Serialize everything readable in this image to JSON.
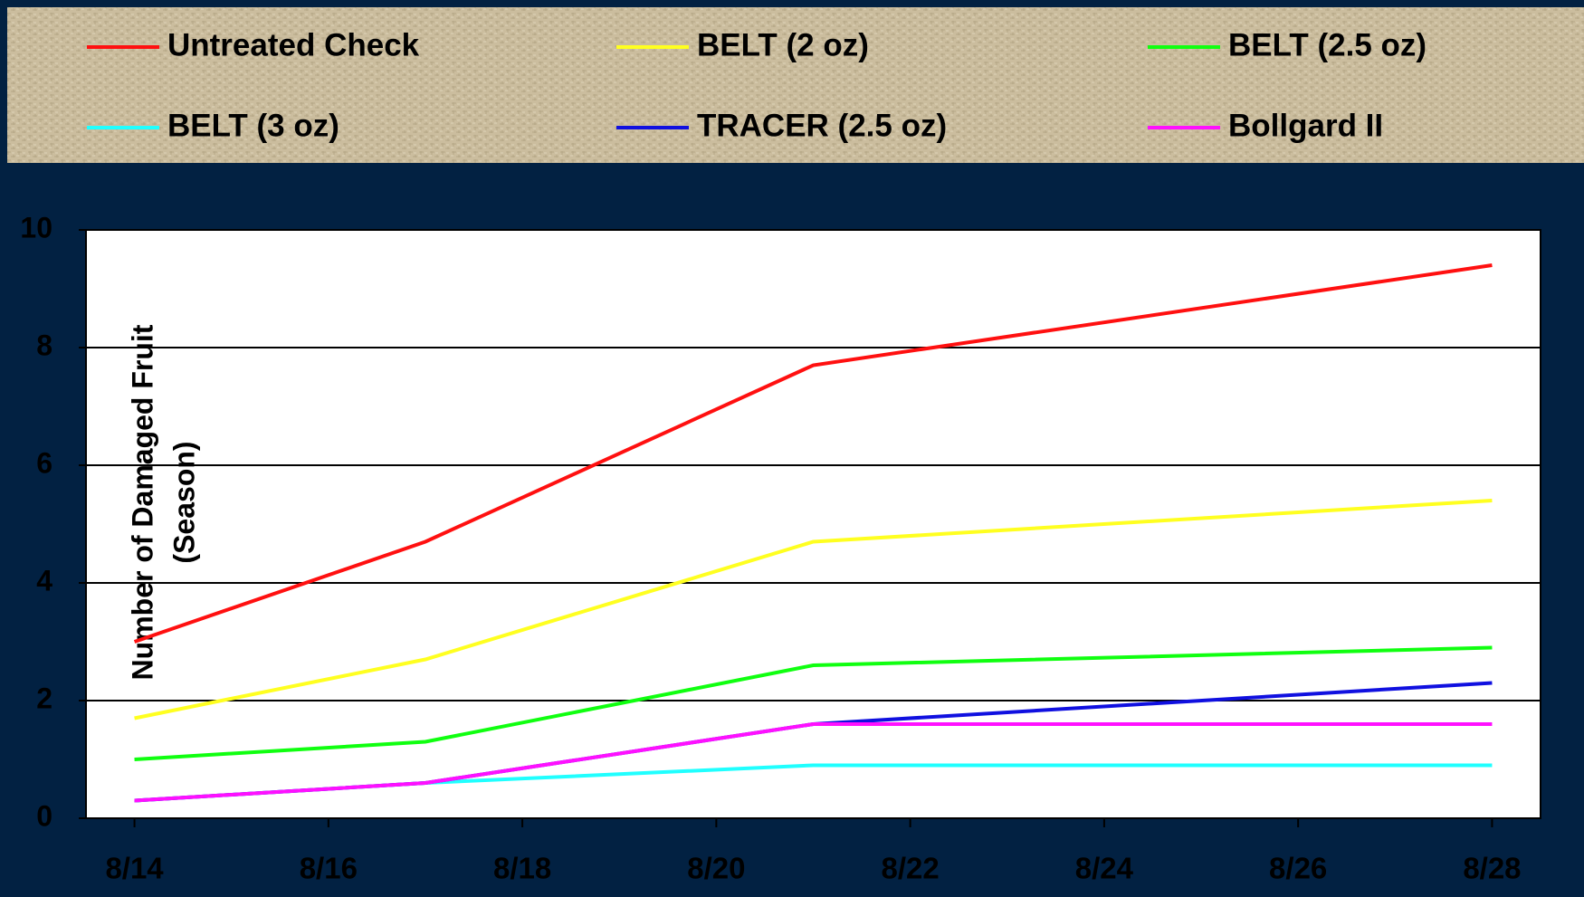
{
  "chart_data": {
    "type": "line",
    "y_label": [
      "Number of Damaged Fruit",
      "(Season)"
    ],
    "x": [
      14,
      17,
      21,
      28
    ],
    "xlim": [
      13.5,
      28.5
    ],
    "xticks": [
      {
        "value": 14,
        "label": "8/14"
      },
      {
        "value": 16,
        "label": "8/16"
      },
      {
        "value": 18,
        "label": "8/18"
      },
      {
        "value": 20,
        "label": "8/20"
      },
      {
        "value": 22,
        "label": "8/22"
      },
      {
        "value": 24,
        "label": "8/24"
      },
      {
        "value": 26,
        "label": "8/26"
      },
      {
        "value": 28,
        "label": "8/28"
      }
    ],
    "ylim": [
      0,
      10
    ],
    "yticks": [
      0,
      2,
      4,
      6,
      8,
      10
    ],
    "grid": true,
    "legend": "top",
    "series": [
      {
        "name": "Untreated Check",
        "color": "#ff1010",
        "values": [
          3.0,
          4.7,
          7.7,
          9.4
        ]
      },
      {
        "name": "BELT (2 oz)",
        "color": "#ffff20",
        "values": [
          1.7,
          2.7,
          4.7,
          5.4
        ]
      },
      {
        "name": "BELT (2.5 oz)",
        "color": "#10ff10",
        "values": [
          1.0,
          1.3,
          2.6,
          2.9
        ]
      },
      {
        "name": "BELT (3 oz)",
        "color": "#20ffff",
        "values": [
          0.3,
          0.6,
          0.9,
          0.9
        ]
      },
      {
        "name": "TRACER (2.5 oz)",
        "color": "#1010e0",
        "values": [
          0.3,
          0.6,
          1.6,
          2.3
        ]
      },
      {
        "name": "Bollgard II",
        "color": "#ff10ff",
        "values": [
          0.3,
          0.6,
          1.6,
          1.6
        ]
      }
    ]
  }
}
